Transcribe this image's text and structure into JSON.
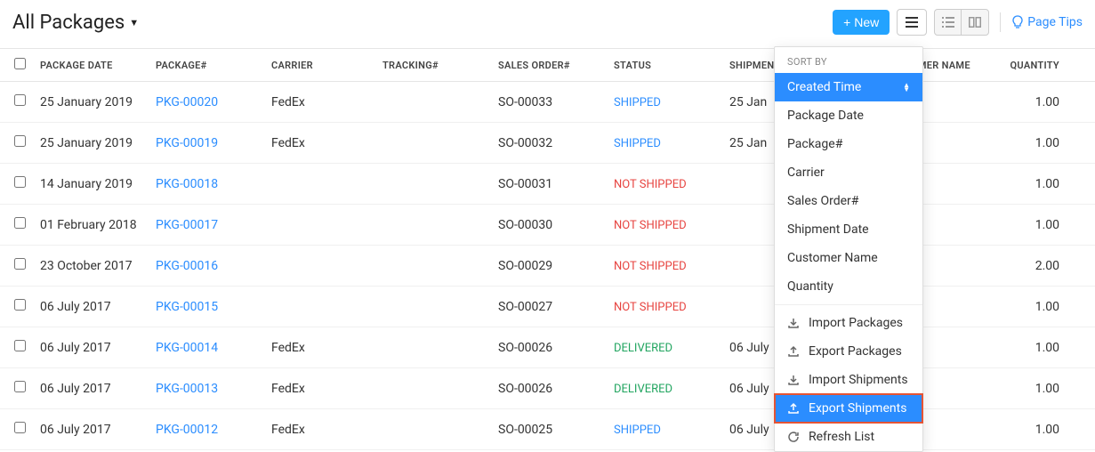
{
  "header": {
    "title": "All Packages",
    "new_button": "New",
    "page_tips": "Page Tips"
  },
  "columns": {
    "package_date": "PACKAGE DATE",
    "package_num": "PACKAGE#",
    "carrier": "CARRIER",
    "tracking_num": "TRACKING#",
    "sales_order": "SALES ORDER#",
    "status": "STATUS",
    "shipment_date": "SHIPMENT DATE",
    "customer_name": "CUSTOMER NAME",
    "quantity": "QUANTITY"
  },
  "status_labels": {
    "shipped": "SHIPPED",
    "not_shipped": "NOT SHIPPED",
    "delivered": "DELIVERED"
  },
  "rows": [
    {
      "date": "25 January 2019",
      "pkg": "PKG-00020",
      "carrier": "FedEx",
      "tracking": "",
      "so": "SO-00033",
      "status": "shipped",
      "shipdate": "25 Jan",
      "qty": "1.00"
    },
    {
      "date": "25 January 2019",
      "pkg": "PKG-00019",
      "carrier": "FedEx",
      "tracking": "",
      "so": "SO-00032",
      "status": "shipped",
      "shipdate": "25 Jan",
      "qty": "1.00"
    },
    {
      "date": "14 January 2019",
      "pkg": "PKG-00018",
      "carrier": "",
      "tracking": "",
      "so": "SO-00031",
      "status": "not_shipped",
      "shipdate": "",
      "qty": "1.00"
    },
    {
      "date": "01 February 2018",
      "pkg": "PKG-00017",
      "carrier": "",
      "tracking": "",
      "so": "SO-00030",
      "status": "not_shipped",
      "shipdate": "",
      "qty": "1.00"
    },
    {
      "date": "23 October 2017",
      "pkg": "PKG-00016",
      "carrier": "",
      "tracking": "",
      "so": "SO-00029",
      "status": "not_shipped",
      "shipdate": "",
      "qty": "2.00"
    },
    {
      "date": "06 July 2017",
      "pkg": "PKG-00015",
      "carrier": "",
      "tracking": "",
      "so": "SO-00027",
      "status": "not_shipped",
      "shipdate": "",
      "qty": "1.00"
    },
    {
      "date": "06 July 2017",
      "pkg": "PKG-00014",
      "carrier": "FedEx",
      "tracking": "",
      "so": "SO-00026",
      "status": "delivered",
      "shipdate": "06 July",
      "qty": "1.00"
    },
    {
      "date": "06 July 2017",
      "pkg": "PKG-00013",
      "carrier": "FedEx",
      "tracking": "",
      "so": "SO-00026",
      "status": "delivered",
      "shipdate": "06 July",
      "qty": "1.00"
    },
    {
      "date": "06 July 2017",
      "pkg": "PKG-00012",
      "carrier": "FedEx",
      "tracking": "",
      "so": "SO-00025",
      "status": "shipped",
      "shipdate": "06 July",
      "qty": "1.00"
    }
  ],
  "dropdown": {
    "header": "SORT BY",
    "sort_options": {
      "created_time": "Created Time",
      "package_date": "Package Date",
      "package_num": "Package#",
      "carrier": "Carrier",
      "sales_order": "Sales Order#",
      "shipment_date": "Shipment Date",
      "customer_name": "Customer Name",
      "quantity": "Quantity"
    },
    "actions": {
      "import_packages": "Import Packages",
      "export_packages": "Export Packages",
      "import_shipments": "Import Shipments",
      "export_shipments": "Export Shipments",
      "refresh_list": "Refresh List"
    }
  },
  "colors": {
    "primary_blue": "#2b8dff",
    "new_button_blue": "#23a3ff",
    "status_shipped": "#2b8dff",
    "status_not_shipped": "#e74440",
    "status_delivered": "#22a560",
    "highlight_border": "#e55434",
    "border": "#e5e5e5",
    "text": "#333333"
  }
}
